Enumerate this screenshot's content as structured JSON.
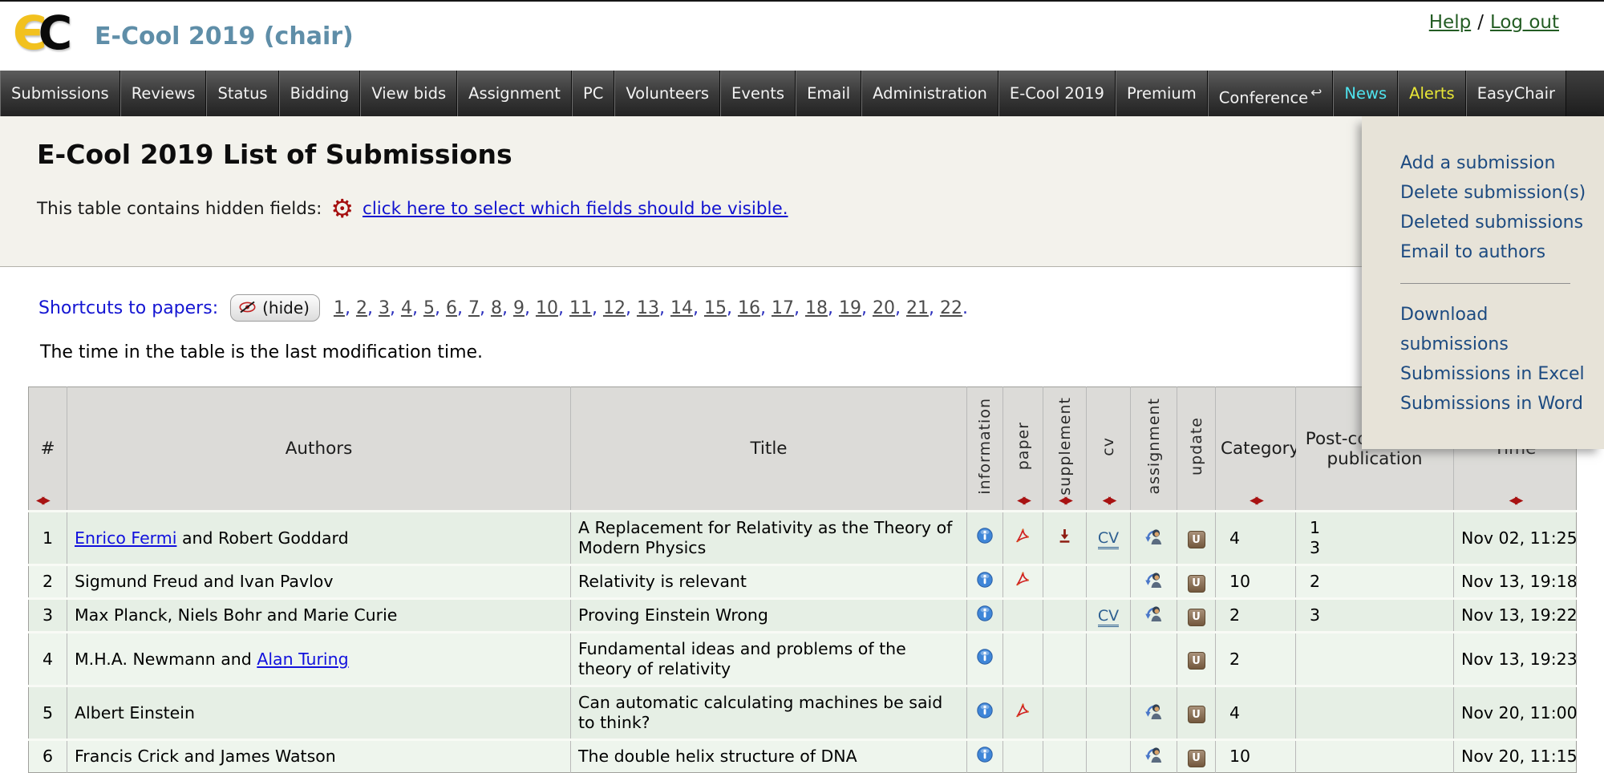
{
  "header": {
    "logo_e": "Є",
    "logo_c": "C",
    "title": "E-Cool 2019 (chair)",
    "help_label": "Help",
    "separator": "/",
    "logout_label": "Log out"
  },
  "icons": {
    "return-arrow": "↩",
    "sort": "◀▶",
    "gear": "⚙"
  },
  "colors": {
    "nav_news": "#4fe3ee",
    "nav_alerts": "#e8e636",
    "title_blue": "#5f8ea8",
    "sort_red": "#a81212",
    "menu_link": "#1c4a80",
    "link_blue": "#1213cf",
    "session_green": "#235c23"
  },
  "nav": {
    "tabs": [
      {
        "label": "Submissions"
      },
      {
        "label": "Reviews"
      },
      {
        "label": "Status"
      },
      {
        "label": "Bidding"
      },
      {
        "label": "View bids"
      },
      {
        "label": "Assignment"
      },
      {
        "label": "PC"
      },
      {
        "label": "Volunteers"
      },
      {
        "label": "Events"
      },
      {
        "label": "Email"
      },
      {
        "label": "Administration"
      },
      {
        "label": "E-Cool 2019"
      },
      {
        "label": "Premium"
      },
      {
        "label": "Conference",
        "icon": "return-arrow"
      },
      {
        "label": "News",
        "color": "#4fe3ee"
      },
      {
        "label": "Alerts",
        "color": "#e8e636"
      },
      {
        "label": "EasyChair"
      }
    ]
  },
  "page": {
    "title": "E-Cool 2019 List of Submissions",
    "hidden_fields_text": "This table contains hidden fields:",
    "hidden_fields_link": "click here to select which fields should be visible.",
    "shortcuts_label": "Shortcuts to papers:",
    "hide_label": "(hide)",
    "paper_numbers": [
      "1",
      "2",
      "3",
      "4",
      "5",
      "6",
      "7",
      "8",
      "9",
      "10",
      "11",
      "12",
      "13",
      "14",
      "15",
      "16",
      "17",
      "18",
      "19",
      "20",
      "21",
      "22"
    ],
    "time_note": "The time in the table is the last modification time."
  },
  "menu": {
    "group1": [
      "Add a submission",
      "Delete submission(s)",
      "Deleted submissions",
      "Email to authors"
    ],
    "group2": [
      "Download submissions",
      "Submissions in Excel",
      "Submissions in Word"
    ]
  },
  "table": {
    "cv_label": "CV",
    "update_glyph": "U",
    "columns": [
      {
        "label": "#",
        "vertical": false,
        "sortable": true
      },
      {
        "label": "Authors",
        "vertical": false,
        "sortable": false
      },
      {
        "label": "Title",
        "vertical": false,
        "sortable": false
      },
      {
        "label": "information",
        "vertical": true,
        "sortable": false
      },
      {
        "label": "paper",
        "vertical": true,
        "sortable": true
      },
      {
        "label": "supplement",
        "vertical": true,
        "sortable": true
      },
      {
        "label": "cv",
        "vertical": true,
        "sortable": true
      },
      {
        "label": "assignment",
        "vertical": true,
        "sortable": false
      },
      {
        "label": "update",
        "vertical": true,
        "sortable": false
      },
      {
        "label": "Category",
        "vertical": false,
        "sortable": true
      },
      {
        "label": "Post-conference publication",
        "vertical": false,
        "sortable": false
      },
      {
        "label": "Time",
        "vertical": false,
        "sortable": true
      }
    ],
    "rows": [
      {
        "num": "1",
        "authors": [
          {
            "text": "Enrico Fermi",
            "link": true
          },
          {
            "text": " and Robert Goddard",
            "link": false
          }
        ],
        "title": "A Replacement for Relativity as the Theory of Modern Physics",
        "info": true,
        "paper": true,
        "supplement": true,
        "cv": true,
        "assignment": true,
        "update": true,
        "category": "4",
        "postconf": [
          "1",
          "3"
        ],
        "time": "Nov 02, 11:25"
      },
      {
        "num": "2",
        "authors": [
          {
            "text": "Sigmund Freud and Ivan Pavlov",
            "link": false
          }
        ],
        "title": "Relativity is relevant",
        "info": true,
        "paper": true,
        "supplement": false,
        "cv": false,
        "assignment": true,
        "update": true,
        "category": "10",
        "postconf": [
          "2"
        ],
        "time": "Nov 13, 19:18"
      },
      {
        "num": "3",
        "authors": [
          {
            "text": "Max Planck, Niels Bohr and Marie Curie",
            "link": false
          }
        ],
        "title": "Proving Einstein Wrong",
        "info": true,
        "paper": false,
        "supplement": false,
        "cv": true,
        "assignment": true,
        "update": true,
        "category": "2",
        "postconf": [
          "3"
        ],
        "time": "Nov 13, 19:22"
      },
      {
        "num": "4",
        "authors": [
          {
            "text": "M.H.A. Newmann and ",
            "link": false
          },
          {
            "text": "Alan Turing",
            "link": true
          }
        ],
        "title": "Fundamental ideas and problems of the theory of relativity",
        "info": true,
        "paper": false,
        "supplement": false,
        "cv": false,
        "assignment": false,
        "update": true,
        "category": "2",
        "postconf": [],
        "time": "Nov 13, 19:23"
      },
      {
        "num": "5",
        "authors": [
          {
            "text": "Albert Einstein",
            "link": false
          }
        ],
        "title": "Can automatic calculating machines be said to think?",
        "info": true,
        "paper": true,
        "supplement": false,
        "cv": false,
        "assignment": true,
        "update": true,
        "category": "4",
        "postconf": [],
        "time": "Nov 20, 11:00"
      },
      {
        "num": "6",
        "authors": [
          {
            "text": "Francis Crick and James Watson",
            "link": false
          }
        ],
        "title": "The double helix structure of DNA",
        "info": true,
        "paper": false,
        "supplement": false,
        "cv": false,
        "assignment": true,
        "update": true,
        "category": "10",
        "postconf": [],
        "time": "Nov 20, 11:15"
      }
    ]
  }
}
